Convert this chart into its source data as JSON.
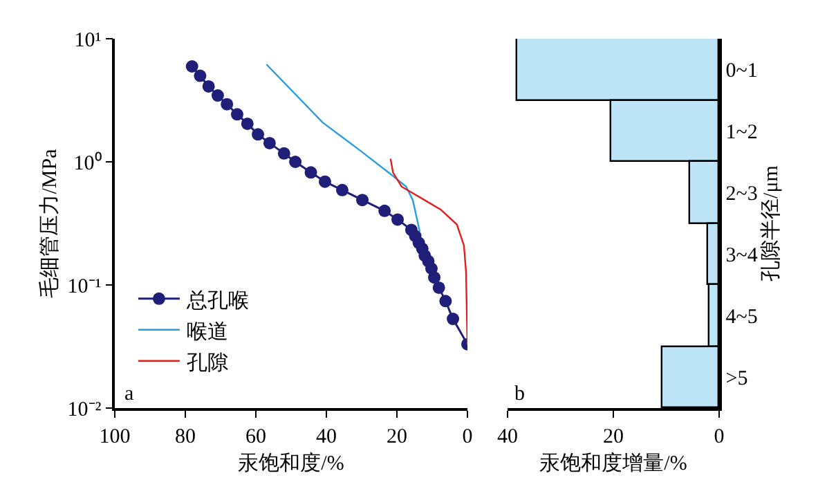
{
  "chart_data": [
    {
      "type": "line",
      "xlabel": "汞饱和度/%",
      "ylabel": "毛细管压力/MPa",
      "log": "y",
      "legend": "bottom left",
      "xlim": [
        100,
        0
      ],
      "xticks": [
        100,
        80,
        60,
        40,
        20,
        0
      ],
      "ylim": [
        0.01,
        10
      ],
      "yticks": [
        {
          "value": 10,
          "label": "10¹"
        },
        {
          "value": 1,
          "label": "10⁰"
        },
        {
          "value": 0.1,
          "label": "10⁻¹"
        },
        {
          "value": 0.01,
          "label": "10⁻²"
        }
      ],
      "annotations": [
        "a"
      ],
      "series": [
        {
          "name": "总孔喉",
          "color": "#1f1f7a",
          "marker": "circle",
          "x": [
            78.1,
            75.8,
            73.4,
            70.8,
            68.2,
            65.3,
            62.4,
            59.4,
            56.1,
            52.0,
            48.8,
            44.4,
            40.4,
            35.5,
            29.8,
            23.5,
            19.8,
            15.9,
            14.8,
            13.8,
            12.8,
            12.1,
            11.1,
            10.2,
            9.4,
            8.1,
            6.2,
            4.1,
            0
          ],
          "values": [
            5.96,
            5.0,
            4.1,
            3.46,
            2.94,
            2.43,
            2.04,
            1.67,
            1.42,
            1.17,
            1.0,
            0.82,
            0.69,
            0.59,
            0.49,
            0.4,
            0.34,
            0.28,
            0.25,
            0.22,
            0.197,
            0.173,
            0.156,
            0.136,
            0.115,
            0.095,
            0.074,
            0.053,
            0.033
          ]
        },
        {
          "name": "喉道",
          "color": "#2a9de0",
          "marker": "none",
          "x": [
            57.0,
            41.0,
            30.5,
            21.4,
            17.4,
            15.5,
            13.5
          ],
          "values": [
            6.2,
            2.08,
            1.24,
            0.78,
            0.63,
            0.49,
            0.27
          ]
        },
        {
          "name": "孔隙",
          "color": "#e0201e",
          "marker": "none",
          "x": [
            21.8,
            21.1,
            18.7,
            12.2,
            7.6,
            3.0,
            1.0,
            0.4,
            0
          ],
          "values": [
            1.06,
            0.82,
            0.63,
            0.49,
            0.41,
            0.31,
            0.21,
            0.128,
            0.033
          ]
        }
      ]
    },
    {
      "type": "bar",
      "orientation": "horizontal",
      "xlabel": "汞饱和度增量/%",
      "ylabel": "孔隙半径/μm",
      "legend": false,
      "xlim": [
        40,
        0
      ],
      "xticks": [
        40,
        20,
        0
      ],
      "categories": [
        "0~1",
        "1~2",
        "2~3",
        "3~4",
        "4~5",
        ">5"
      ],
      "values": [
        38.1,
        20.3,
        5.4,
        2.1,
        1.8,
        10.7
      ],
      "color": "#bde3f7",
      "annotations": [
        "b"
      ]
    }
  ]
}
